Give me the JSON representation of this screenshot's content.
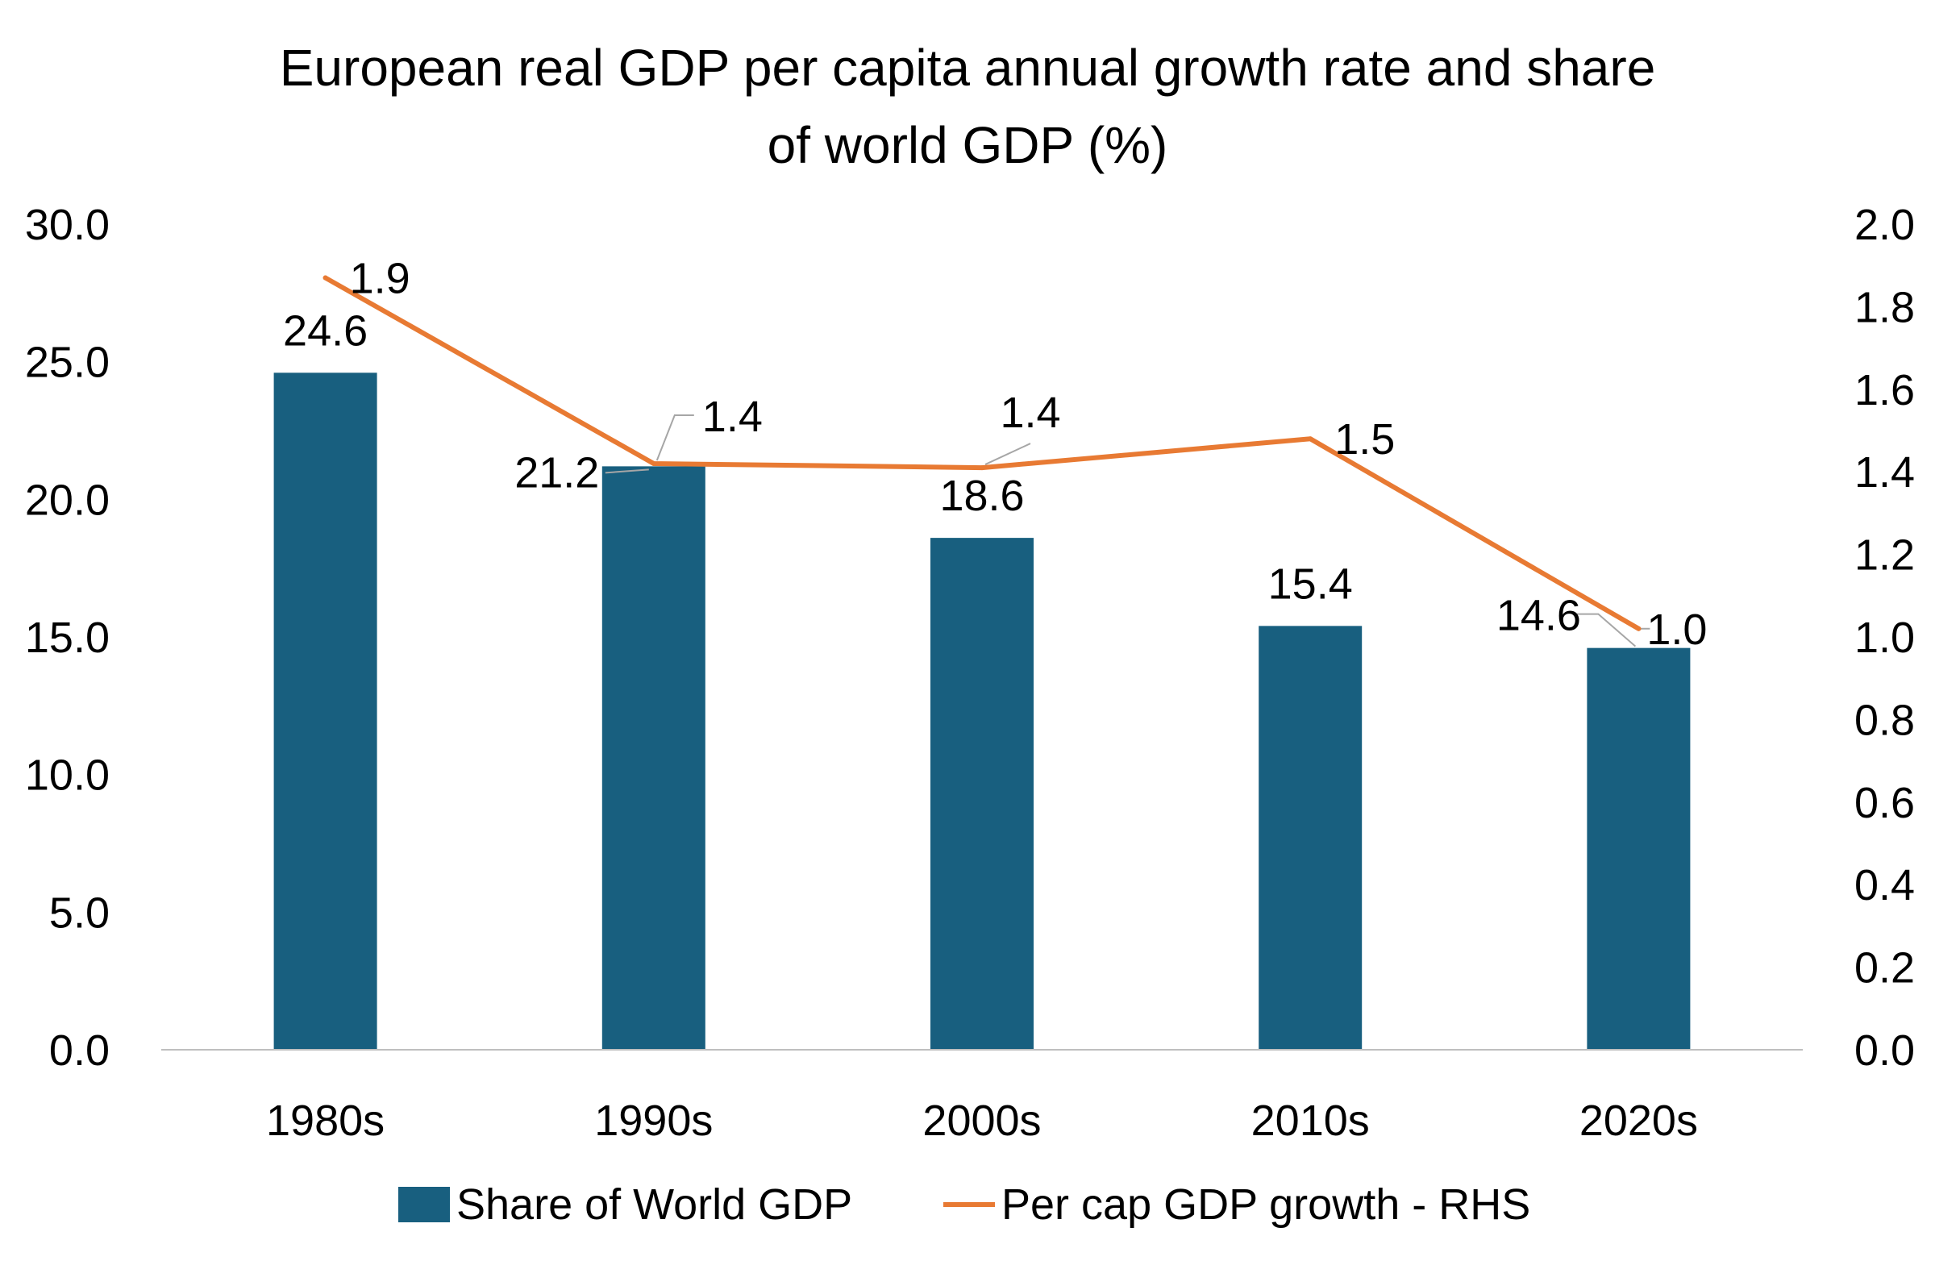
{
  "colors": {
    "bar": "#185F7F",
    "line": "#E87A33",
    "axis": "#BFBFBF",
    "leader": "#A6A6A6"
  },
  "chart_data": {
    "type": "bar",
    "title_line1": "European real GDP per capita annual growth rate and share",
    "title_line2": "of world GDP (%)",
    "categories": [
      "1980s",
      "1990s",
      "2000s",
      "2010s",
      "2020s"
    ],
    "series": [
      {
        "name": "Share of World GDP",
        "type": "bar",
        "axis": "left",
        "values": [
          24.6,
          21.2,
          18.6,
          15.4,
          14.6
        ],
        "labels": [
          "24.6",
          "21.2",
          "18.6",
          "15.4",
          "14.6"
        ]
      },
      {
        "name": "Per cap GDP growth - RHS",
        "type": "line",
        "axis": "right",
        "values": [
          1.87,
          1.42,
          1.41,
          1.48,
          1.02
        ],
        "labels": [
          "1.9",
          "1.4",
          "1.4",
          "1.5",
          "1.0"
        ]
      }
    ],
    "y_left": {
      "min": 0,
      "max": 30,
      "step": 5,
      "tick_labels": [
        "0.0",
        "5.0",
        "10.0",
        "15.0",
        "20.0",
        "25.0",
        "30.0"
      ]
    },
    "y_right": {
      "min": 0,
      "max": 2,
      "step": 0.2,
      "tick_labels": [
        "0.0",
        "0.2",
        "0.4",
        "0.6",
        "0.8",
        "1.0",
        "1.2",
        "1.4",
        "1.6",
        "1.8",
        "2.0"
      ]
    },
    "grid": false,
    "legend_position": "bottom"
  }
}
